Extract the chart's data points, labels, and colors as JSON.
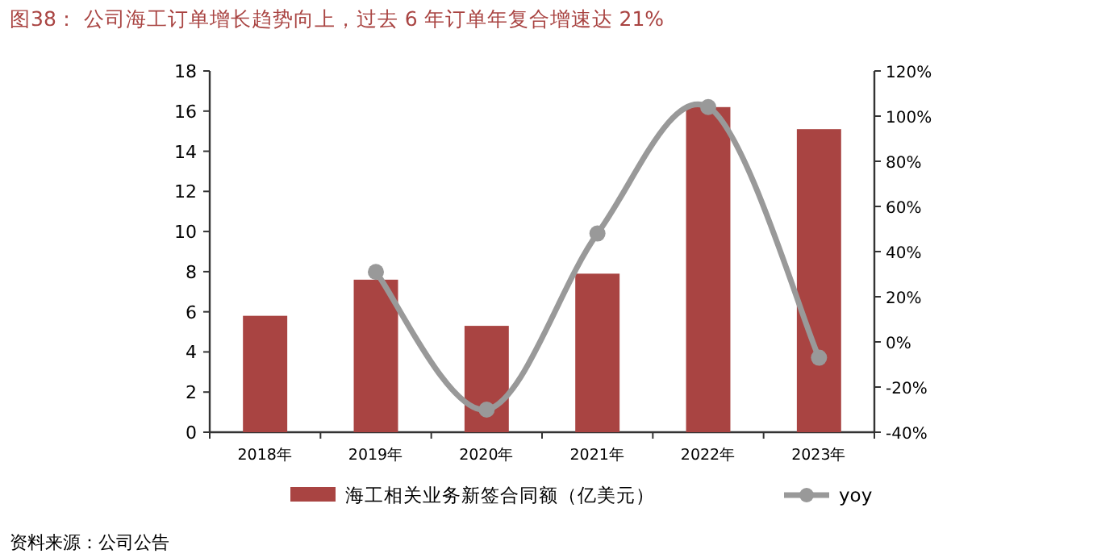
{
  "chart_data": {
    "type": "bar",
    "title": "图38：  公司海工订单增长趋势向上，过去 6 年订单年复合增速达 21%",
    "categories": [
      "2018年",
      "2019年",
      "2020年",
      "2021年",
      "2022年",
      "2023年"
    ],
    "series": [
      {
        "name": "海工相关业务新签合同额（亿美元）",
        "color": "#a94442",
        "values": [
          5.8,
          7.6,
          5.3,
          7.9,
          16.2,
          15.1
        ]
      },
      {
        "name": "yoy",
        "type": "line",
        "axis": "y2",
        "color": "#999999",
        "marker": "circle",
        "values": [
          null,
          31,
          -30,
          48,
          104,
          -7
        ]
      }
    ],
    "ylim": [
      0,
      18
    ],
    "yticks": [
      0,
      2,
      4,
      6,
      8,
      10,
      12,
      14,
      16,
      18
    ],
    "y2lim": [
      -40,
      120
    ],
    "y2ticks": [
      {
        "value": -40,
        "label": "-40%"
      },
      {
        "value": -20,
        "label": "-20%"
      },
      {
        "value": 0,
        "label": "0%"
      },
      {
        "value": 20,
        "label": "20%"
      },
      {
        "value": 40,
        "label": "40%"
      },
      {
        "value": 60,
        "label": "60%"
      },
      {
        "value": 80,
        "label": "80%"
      },
      {
        "value": 100,
        "label": "100%"
      },
      {
        "value": 120,
        "label": "120%"
      }
    ],
    "legend": "bottom",
    "grid": false,
    "annotations": [
      "资料来源：公司公告"
    ]
  }
}
